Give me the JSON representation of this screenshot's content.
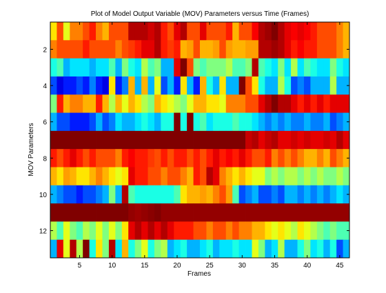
{
  "chart_data": {
    "type": "heatmap",
    "title": "Plot of Model Output Variable (MOV) Parameters versus Time (Frames)",
    "xlabel": "Frames",
    "ylabel": "MOV Parameters",
    "x_ticks": [
      5,
      10,
      15,
      20,
      25,
      30,
      35,
      40,
      45
    ],
    "y_ticks": [
      2,
      4,
      6,
      8,
      10,
      12
    ],
    "xlim": [
      0.5,
      46.5
    ],
    "ylim": [
      0.5,
      13.5
    ],
    "y_direction": "reverse",
    "colormap": "jet",
    "clim": [
      0,
      1
    ],
    "grid": false,
    "n_frames": 46,
    "n_parameters": 13,
    "values": [
      [
        0.65,
        0.8,
        0.6,
        0.75,
        0.75,
        0.8,
        0.85,
        0.75,
        0.7,
        0.8,
        0.8,
        0.8,
        0.95,
        0.95,
        0.95,
        0.92,
        0.95,
        0.85,
        0.8,
        0.9,
        0.95,
        0.8,
        0.8,
        0.9,
        0.8,
        0.8,
        0.8,
        0.85,
        0.7,
        0.8,
        0.8,
        0.88,
        0.95,
        0.97,
        1.0,
        0.95,
        0.9,
        0.88,
        0.9,
        0.88,
        0.85,
        0.8,
        0.8,
        0.8,
        0.75,
        0.7
      ],
      [
        0.75,
        0.8,
        0.8,
        0.8,
        0.8,
        0.85,
        0.8,
        0.8,
        0.8,
        0.8,
        0.75,
        0.8,
        0.82,
        0.85,
        0.9,
        0.9,
        0.95,
        0.85,
        0.82,
        0.85,
        0.7,
        0.72,
        0.8,
        0.7,
        0.7,
        0.72,
        0.8,
        0.72,
        0.7,
        0.7,
        0.72,
        0.72,
        0.95,
        0.95,
        0.97,
        0.95,
        0.9,
        0.85,
        0.88,
        0.85,
        0.85,
        0.8,
        0.8,
        0.8,
        0.75,
        0.7
      ],
      [
        0.4,
        0.45,
        0.3,
        0.35,
        0.35,
        0.35,
        0.3,
        0.35,
        0.35,
        0.45,
        0.3,
        0.5,
        0.4,
        0.35,
        0.55,
        0.45,
        0.5,
        0.3,
        0.3,
        0.9,
        1.0,
        0.8,
        0.5,
        0.45,
        0.5,
        0.5,
        0.5,
        0.55,
        0.45,
        0.45,
        0.5,
        0.95,
        0.45,
        0.4,
        0.35,
        0.5,
        0.35,
        0.55,
        0.35,
        0.45,
        0.4,
        0.35,
        0.35,
        0.5,
        0.4,
        0.35
      ],
      [
        0.2,
        0.1,
        0.15,
        0.15,
        0.2,
        0.15,
        0.25,
        0.15,
        0.1,
        0.65,
        0.15,
        0.25,
        0.7,
        0.3,
        0.7,
        0.3,
        0.6,
        0.2,
        0.3,
        0.15,
        0.65,
        0.3,
        0.15,
        0.7,
        0.4,
        0.3,
        0.65,
        0.3,
        0.3,
        1.0,
        0.8,
        0.65,
        0.4,
        0.3,
        0.3,
        0.55,
        0.4,
        0.2,
        0.25,
        0.2,
        0.3,
        0.3,
        0.3,
        0.55,
        0.3,
        0.3
      ],
      [
        0.5,
        0.85,
        0.7,
        0.75,
        0.75,
        0.7,
        0.7,
        0.85,
        0.7,
        0.55,
        0.7,
        0.6,
        0.7,
        0.65,
        0.55,
        0.5,
        0.7,
        0.65,
        0.6,
        0.55,
        0.5,
        0.6,
        0.7,
        0.7,
        0.65,
        0.65,
        0.6,
        0.75,
        0.75,
        0.75,
        0.8,
        0.8,
        0.9,
        0.95,
        1.0,
        0.95,
        0.95,
        0.9,
        0.85,
        0.9,
        0.85,
        0.9,
        0.85,
        0.9,
        0.9,
        0.9
      ],
      [
        0.3,
        0.2,
        0.2,
        0.15,
        0.15,
        0.15,
        0.2,
        0.3,
        0.2,
        0.25,
        0.35,
        0.3,
        0.3,
        0.35,
        0.4,
        0.35,
        0.3,
        0.4,
        0.4,
        1.0,
        0.4,
        1.0,
        0.4,
        0.45,
        0.35,
        0.4,
        0.4,
        0.4,
        0.45,
        0.4,
        0.4,
        0.35,
        0.3,
        0.25,
        0.3,
        0.25,
        0.3,
        0.25,
        0.25,
        0.3,
        0.25,
        0.25,
        0.3,
        0.2,
        0.25,
        0.3
      ],
      [
        1.0,
        1.0,
        1.0,
        1.0,
        1.0,
        1.0,
        1.0,
        1.0,
        1.0,
        1.0,
        1.0,
        1.0,
        1.0,
        1.0,
        1.0,
        1.0,
        1.0,
        1.0,
        1.0,
        1.0,
        1.0,
        1.0,
        1.0,
        1.0,
        1.0,
        1.0,
        1.0,
        1.0,
        1.0,
        1.0,
        0.93,
        0.95,
        0.9,
        0.93,
        0.95,
        0.9,
        0.9,
        0.92,
        0.9,
        0.92,
        0.9,
        0.9,
        0.92,
        0.9,
        0.95,
        0.9
      ],
      [
        0.85,
        0.8,
        0.85,
        0.9,
        0.85,
        0.8,
        0.85,
        0.8,
        0.8,
        0.8,
        0.75,
        0.85,
        0.88,
        0.85,
        0.85,
        0.82,
        0.8,
        0.85,
        0.8,
        0.85,
        0.85,
        0.8,
        0.85,
        0.8,
        0.85,
        0.9,
        0.85,
        0.88,
        0.85,
        0.9,
        0.85,
        0.8,
        0.8,
        0.85,
        0.75,
        0.8,
        0.75,
        0.8,
        0.75,
        0.7,
        0.7,
        0.75,
        0.7,
        0.8,
        0.75,
        0.7
      ],
      [
        0.7,
        0.65,
        0.72,
        0.7,
        0.65,
        0.65,
        0.7,
        0.75,
        0.7,
        0.65,
        0.6,
        0.65,
        0.9,
        0.85,
        0.85,
        0.8,
        0.8,
        0.75,
        0.8,
        0.8,
        0.75,
        0.7,
        0.85,
        0.8,
        0.95,
        0.9,
        0.75,
        0.7,
        0.65,
        0.7,
        0.65,
        0.6,
        0.6,
        0.5,
        0.55,
        0.5,
        0.55,
        0.55,
        0.5,
        0.55,
        0.5,
        0.55,
        0.5,
        0.5,
        0.55,
        0.5
      ],
      [
        0.3,
        0.25,
        0.2,
        0.2,
        0.15,
        0.2,
        0.2,
        0.25,
        0.3,
        0.5,
        0.3,
        0.95,
        0.45,
        0.4,
        0.4,
        0.4,
        0.4,
        0.4,
        0.4,
        0.45,
        0.65,
        0.7,
        0.7,
        0.72,
        0.7,
        0.75,
        0.8,
        0.72,
        0.45,
        0.2,
        0.25,
        0.3,
        0.2,
        0.2,
        0.25,
        0.2,
        0.3,
        0.3,
        0.25,
        0.3,
        0.25,
        0.3,
        0.25,
        0.3,
        0.35,
        0.3
      ],
      [
        1.0,
        1.0,
        1.0,
        1.0,
        1.0,
        1.0,
        1.0,
        1.0,
        1.0,
        1.0,
        1.0,
        1.0,
        0.98,
        0.97,
        0.98,
        0.99,
        1.0,
        0.98,
        0.98,
        0.98,
        0.98,
        0.98,
        0.98,
        0.98,
        0.98,
        0.98,
        0.98,
        0.98,
        0.98,
        0.98,
        0.98,
        0.98,
        0.98,
        0.98,
        0.98,
        0.98,
        0.98,
        0.98,
        0.98,
        0.98,
        0.98,
        0.98,
        0.98,
        0.98,
        0.98,
        0.98
      ],
      [
        0.55,
        0.45,
        0.6,
        0.5,
        0.45,
        0.55,
        0.5,
        0.6,
        0.5,
        0.6,
        0.5,
        0.65,
        0.9,
        0.95,
        0.9,
        0.95,
        0.9,
        0.95,
        0.9,
        0.85,
        0.85,
        0.85,
        0.8,
        0.8,
        0.75,
        0.8,
        0.8,
        0.75,
        0.8,
        0.75,
        0.75,
        0.7,
        0.7,
        0.65,
        0.6,
        0.65,
        0.6,
        0.55,
        0.65,
        0.6,
        0.55,
        0.5,
        0.45,
        0.5,
        0.45,
        0.45
      ],
      [
        0.3,
        0.9,
        0.6,
        0.95,
        0.55,
        1.0,
        0.4,
        0.65,
        0.5,
        0.95,
        0.35,
        0.7,
        0.4,
        0.5,
        0.6,
        0.4,
        0.5,
        0.55,
        0.3,
        0.35,
        0.4,
        0.3,
        0.3,
        0.35,
        0.4,
        0.3,
        0.35,
        0.35,
        0.4,
        0.35,
        0.35,
        0.6,
        0.5,
        0.3,
        0.35,
        0.55,
        0.3,
        0.3,
        0.4,
        0.5,
        0.35,
        0.4,
        0.3,
        0.4,
        0.2,
        0.3
      ]
    ]
  }
}
